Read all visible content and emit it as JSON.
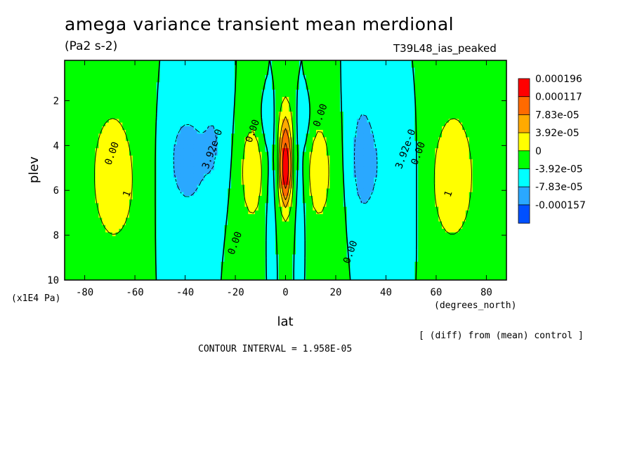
{
  "header": {
    "title": "amega variance transient mean merdional",
    "units": "(Pa2 s-2)",
    "run_name": "T39L48_ias_peaked"
  },
  "footer": {
    "xunits": "(degrees_north)",
    "yunits": "(x1E4 Pa)",
    "diff_note": "[ (diff) from (mean) control ]",
    "contour_interval": "CONTOUR INTERVAL = 1.958E-05"
  },
  "chart_data": {
    "type": "heatmap",
    "title": "amega variance transient mean merdional",
    "xlabel": "lat",
    "ylabel": "plev",
    "xlim": [
      -88,
      88
    ],
    "ylim": [
      10,
      0.2
    ],
    "x_ticks": [
      "-80",
      "-60",
      "-40",
      "-20",
      "0",
      "20",
      "40",
      "60",
      "80"
    ],
    "x_tick_values": [
      -80,
      -60,
      -40,
      -20,
      0,
      20,
      40,
      60,
      80
    ],
    "y_ticks": [
      "2",
      "4",
      "6",
      "8",
      "10"
    ],
    "y_tick_values": [
      2,
      4,
      6,
      8,
      10
    ],
    "legend": {
      "position": "right",
      "levels": [
        "0.000196",
        "0.000117",
        "7.83e-05",
        "3.92e-05",
        "0",
        "-3.92e-05",
        "-7.83e-05",
        "-0.000157"
      ],
      "colors": [
        "#ff0000",
        "#ff6a00",
        "#ffaa00",
        "#ffff00",
        "#00ff00",
        "#00ffff",
        "#2aa8ff",
        "#0050ff"
      ]
    },
    "contour_labels": [
      {
        "text": "0.00",
        "lat": -68,
        "plev": 4.4
      },
      {
        "text": "3.92e-0",
        "lat": -28,
        "plev": 4.2
      },
      {
        "text": "0.00",
        "lat": -12,
        "plev": 3.4
      },
      {
        "text": "0.00",
        "lat": -19,
        "plev": 8.4
      },
      {
        "text": "0.00",
        "lat": 15,
        "plev": 2.7
      },
      {
        "text": "0.00",
        "lat": 27,
        "plev": 8.8
      },
      {
        "text": "3.92e-0",
        "lat": 49,
        "plev": 4.2
      },
      {
        "text": "0.00",
        "lat": 54,
        "plev": 4.4
      },
      {
        "text": "1",
        "lat": -62,
        "plev": 6.2
      },
      {
        "text": "1",
        "lat": 66,
        "plev": 6.2
      }
    ],
    "features": [
      {
        "kind": "positive",
        "lat": -68,
        "plev": 5.8,
        "amp": 4.5e-05,
        "wlat": 8,
        "wplev": 2.6
      },
      {
        "kind": "positive",
        "lat": -70,
        "plev": 4.2,
        "amp": 3e-05,
        "wlat": 14,
        "wplev": 5
      },
      {
        "kind": "positive",
        "lat": 66,
        "plev": 5.8,
        "amp": 4.5e-05,
        "wlat": 8,
        "wplev": 2.6
      },
      {
        "kind": "positive",
        "lat": 68,
        "plev": 4.2,
        "amp": 3e-05,
        "wlat": 14,
        "wplev": 5
      },
      {
        "kind": "positive",
        "lat": -13,
        "plev": 4.8,
        "amp": 4.2e-05,
        "wlat": 5,
        "wplev": 2.2
      },
      {
        "kind": "positive",
        "lat": 13,
        "plev": 4.8,
        "amp": 4.2e-05,
        "wlat": 5,
        "wplev": 2.2
      },
      {
        "kind": "positive",
        "lat": -14,
        "plev": 6.5,
        "amp": 2.5e-05,
        "wlat": 9,
        "wplev": 4
      },
      {
        "kind": "positive",
        "lat": 14,
        "plev": 6.5,
        "amp": 2.5e-05,
        "wlat": 9,
        "wplev": 4
      },
      {
        "kind": "positive",
        "lat": 0,
        "plev": 5,
        "amp": 0.00019,
        "wlat": 1.5,
        "wplev": 1.2
      },
      {
        "kind": "positive",
        "lat": 0,
        "plev": 4.5,
        "amp": 0.00012,
        "wlat": 3,
        "wplev": 2.5
      },
      {
        "kind": "negative",
        "lat": -40,
        "plev": 4.6,
        "amp": -4.5e-05,
        "wlat": 5,
        "wplev": 1.5
      },
      {
        "kind": "negative",
        "lat": -38,
        "plev": 5,
        "amp": -3e-05,
        "wlat": 11,
        "wplev": 4
      },
      {
        "kind": "negative",
        "lat": -28,
        "plev": 3.8,
        "amp": -3e-05,
        "wlat": 6,
        "wplev": 3
      },
      {
        "kind": "negative",
        "lat": 30,
        "plev": 4.5,
        "amp": -4.2e-05,
        "wlat": 5,
        "wplev": 3
      },
      {
        "kind": "negative",
        "lat": 40,
        "plev": 5,
        "amp": -3.5e-05,
        "wlat": 11,
        "wplev": 4
      },
      {
        "kind": "negative",
        "lat": -6,
        "plev": 6.5,
        "amp": -3e-05,
        "wlat": 2.5,
        "wplev": 3.5
      },
      {
        "kind": "negative",
        "lat": 6,
        "plev": 6.5,
        "amp": -3e-05,
        "wlat": 2.5,
        "wplev": 3.5
      },
      {
        "kind": "negative",
        "lat": -8,
        "plev": 3,
        "amp": -2.5e-05,
        "wlat": 3,
        "wplev": 1.2
      },
      {
        "kind": "negative",
        "lat": 8,
        "plev": 3,
        "amp": -2.5e-05,
        "wlat": 3,
        "wplev": 1.2
      }
    ]
  }
}
